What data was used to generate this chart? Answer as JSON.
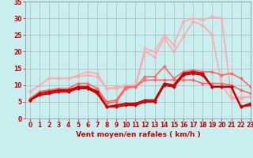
{
  "xlabel": "Vent moyen/en rafales ( km/h )",
  "background_color": "#c8eef0",
  "grid_color": "#aaaaaa",
  "series": [
    {
      "x": [
        0,
        1,
        2,
        3,
        4,
        5,
        6,
        7,
        8,
        9,
        10,
        11,
        12,
        13,
        14,
        15,
        16,
        17,
        18,
        19,
        20,
        21,
        22,
        23
      ],
      "y": [
        8.0,
        10.0,
        12.0,
        12.0,
        12.0,
        13.0,
        14.0,
        13.5,
        9.0,
        9.5,
        10.0,
        10.0,
        21.0,
        20.0,
        25.0,
        22.0,
        29.0,
        30.0,
        29.5,
        30.5,
        30.0,
        6.5,
        6.5,
        6.5
      ],
      "color": "#ffaaaa",
      "lw": 1.2,
      "marker": "D",
      "ms": 2.5
    },
    {
      "x": [
        0,
        1,
        2,
        3,
        4,
        5,
        6,
        7,
        8,
        9,
        10,
        11,
        12,
        13,
        14,
        15,
        16,
        17,
        18,
        19,
        20,
        21,
        22,
        23
      ],
      "y": [
        8.0,
        10.0,
        12.0,
        12.0,
        12.0,
        12.5,
        13.0,
        12.5,
        9.0,
        9.0,
        9.5,
        9.5,
        20.0,
        18.5,
        24.0,
        20.0,
        24.5,
        29.0,
        28.0,
        25.0,
        10.0,
        6.0,
        6.0,
        6.5
      ],
      "color": "#ffaaaa",
      "lw": 1.2,
      "marker": "D",
      "ms": 2.5
    },
    {
      "x": [
        0,
        1,
        2,
        3,
        4,
        5,
        6,
        7,
        8,
        9,
        10,
        11,
        12,
        13,
        14,
        15,
        16,
        17,
        18,
        19,
        20,
        21,
        22,
        23
      ],
      "y": [
        6.0,
        8.0,
        8.5,
        9.0,
        9.0,
        10.5,
        10.5,
        9.0,
        5.0,
        5.5,
        9.5,
        9.5,
        12.5,
        12.5,
        15.5,
        12.0,
        14.0,
        14.5,
        14.0,
        14.0,
        13.0,
        13.5,
        12.0,
        9.5
      ],
      "color": "#ff6666",
      "lw": 1.2,
      "marker": "D",
      "ms": 2.5
    },
    {
      "x": [
        0,
        1,
        2,
        3,
        4,
        5,
        6,
        7,
        8,
        9,
        10,
        11,
        12,
        13,
        14,
        15,
        16,
        17,
        18,
        19,
        20,
        21,
        22,
        23
      ],
      "y": [
        6.0,
        8.0,
        8.5,
        8.5,
        8.5,
        9.0,
        9.0,
        8.5,
        4.5,
        5.0,
        9.0,
        9.5,
        11.5,
        11.5,
        11.5,
        11.5,
        11.5,
        11.5,
        10.5,
        10.5,
        10.5,
        10.0,
        8.5,
        7.5
      ],
      "color": "#ff6666",
      "lw": 1.2,
      "marker": "D",
      "ms": 2.5
    },
    {
      "x": [
        0,
        1,
        2,
        3,
        4,
        5,
        6,
        7,
        8,
        9,
        10,
        11,
        12,
        13,
        14,
        15,
        16,
        17,
        18,
        19,
        20,
        21,
        22,
        23
      ],
      "y": [
        5.5,
        7.5,
        8.0,
        8.5,
        8.5,
        9.5,
        9.5,
        8.0,
        3.5,
        4.0,
        4.5,
        4.5,
        5.5,
        5.5,
        10.5,
        10.0,
        13.5,
        14.0,
        13.5,
        9.5,
        9.5,
        9.5,
        3.5,
        4.5
      ],
      "color": "#cc0000",
      "lw": 1.5,
      "marker": "D",
      "ms": 2.5
    },
    {
      "x": [
        0,
        1,
        2,
        3,
        4,
        5,
        6,
        7,
        8,
        9,
        10,
        11,
        12,
        13,
        14,
        15,
        16,
        17,
        18,
        19,
        20,
        21,
        22,
        23
      ],
      "y": [
        5.5,
        7.0,
        7.5,
        8.0,
        8.0,
        9.0,
        9.0,
        7.5,
        3.5,
        3.5,
        4.0,
        4.0,
        5.0,
        5.0,
        10.0,
        9.5,
        13.0,
        13.5,
        13.0,
        9.5,
        9.5,
        9.5,
        3.5,
        4.0
      ],
      "color": "#cc0000",
      "lw": 1.5,
      "marker": "D",
      "ms": 2.5
    }
  ],
  "xlim": [
    -0.5,
    23
  ],
  "ylim": [
    0,
    35
  ],
  "xticks": [
    0,
    1,
    2,
    3,
    4,
    5,
    6,
    7,
    8,
    9,
    10,
    11,
    12,
    13,
    14,
    15,
    16,
    17,
    18,
    19,
    20,
    21,
    22,
    23
  ],
  "yticks": [
    0,
    5,
    10,
    15,
    20,
    25,
    30,
    35
  ],
  "tick_color": "#cc0000",
  "tick_fontsize": 5.5
}
